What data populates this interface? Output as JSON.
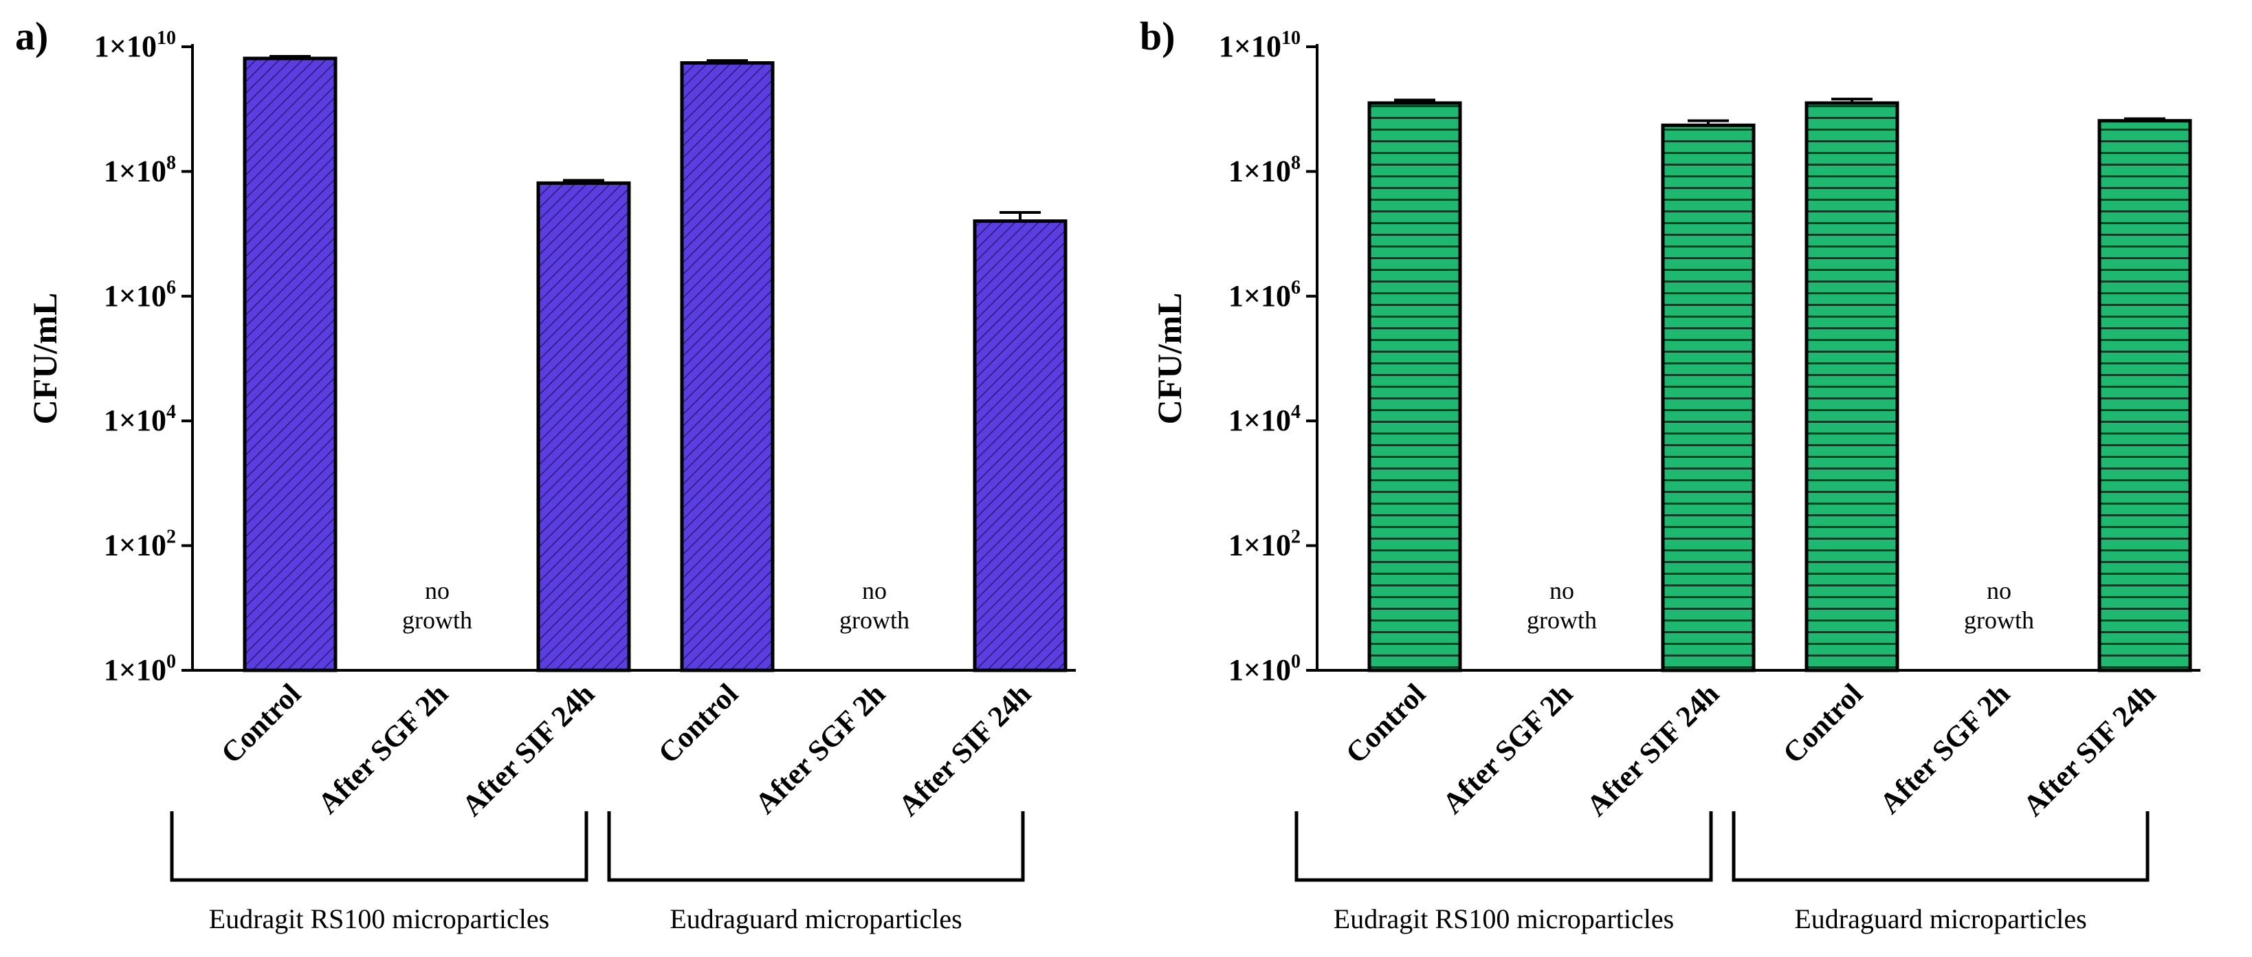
{
  "chart_data": [
    {
      "type": "bar",
      "panel_label": "a)",
      "ylabel": "CFU/mL",
      "yscale": "log",
      "ylim": [
        1,
        10000000000
      ],
      "yticks": [
        {
          "base": "1×10",
          "exp": "0"
        },
        {
          "base": "1×10",
          "exp": "2"
        },
        {
          "base": "1×10",
          "exp": "4"
        },
        {
          "base": "1×10",
          "exp": "6"
        },
        {
          "base": "1×10",
          "exp": "8"
        },
        {
          "base": "1×10",
          "exp": "10"
        }
      ],
      "color": "#5b3de0",
      "pattern": "diagonal-hatch",
      "categories": [
        "Control",
        "After SGF 2h",
        "After SIF 24h",
        "Control",
        "After SGF 2h",
        "After SIF 24h"
      ],
      "values": [
        6500000000,
        null,
        65000000,
        5500000000,
        null,
        16000000
      ],
      "error_upper": [
        7000000000,
        null,
        72000000,
        6000000000,
        null,
        22000000
      ],
      "no_growth_label": [
        "no",
        "growth"
      ],
      "groups": [
        {
          "label": "Eudragit RS100 microparticles",
          "span": [
            0,
            2
          ]
        },
        {
          "label": "Eudraguard microparticles",
          "span": [
            3,
            5
          ]
        }
      ]
    },
    {
      "type": "bar",
      "panel_label": "b)",
      "ylabel": "CFU/mL",
      "yscale": "log",
      "ylim": [
        1,
        10000000000
      ],
      "yticks": [
        {
          "base": "1×10",
          "exp": "0"
        },
        {
          "base": "1×10",
          "exp": "2"
        },
        {
          "base": "1×10",
          "exp": "4"
        },
        {
          "base": "1×10",
          "exp": "6"
        },
        {
          "base": "1×10",
          "exp": "8"
        },
        {
          "base": "1×10",
          "exp": "10"
        }
      ],
      "color": "#1fb870",
      "pattern": "horizontal-lines",
      "categories": [
        "Control",
        "After SGF 2h",
        "After SIF 24h",
        "Control",
        "After SGF 2h",
        "After SIF 24h"
      ],
      "values": [
        1250000000,
        null,
        550000000,
        1250000000,
        null,
        650000000
      ],
      "error_upper": [
        1400000000,
        null,
        650000000,
        1450000000,
        null,
        700000000
      ],
      "no_growth_label": [
        "no",
        "growth"
      ],
      "groups": [
        {
          "label": "Eudragit RS100 microparticles",
          "span": [
            0,
            2
          ]
        },
        {
          "label": "Eudraguard microparticles",
          "span": [
            3,
            5
          ]
        }
      ]
    }
  ]
}
